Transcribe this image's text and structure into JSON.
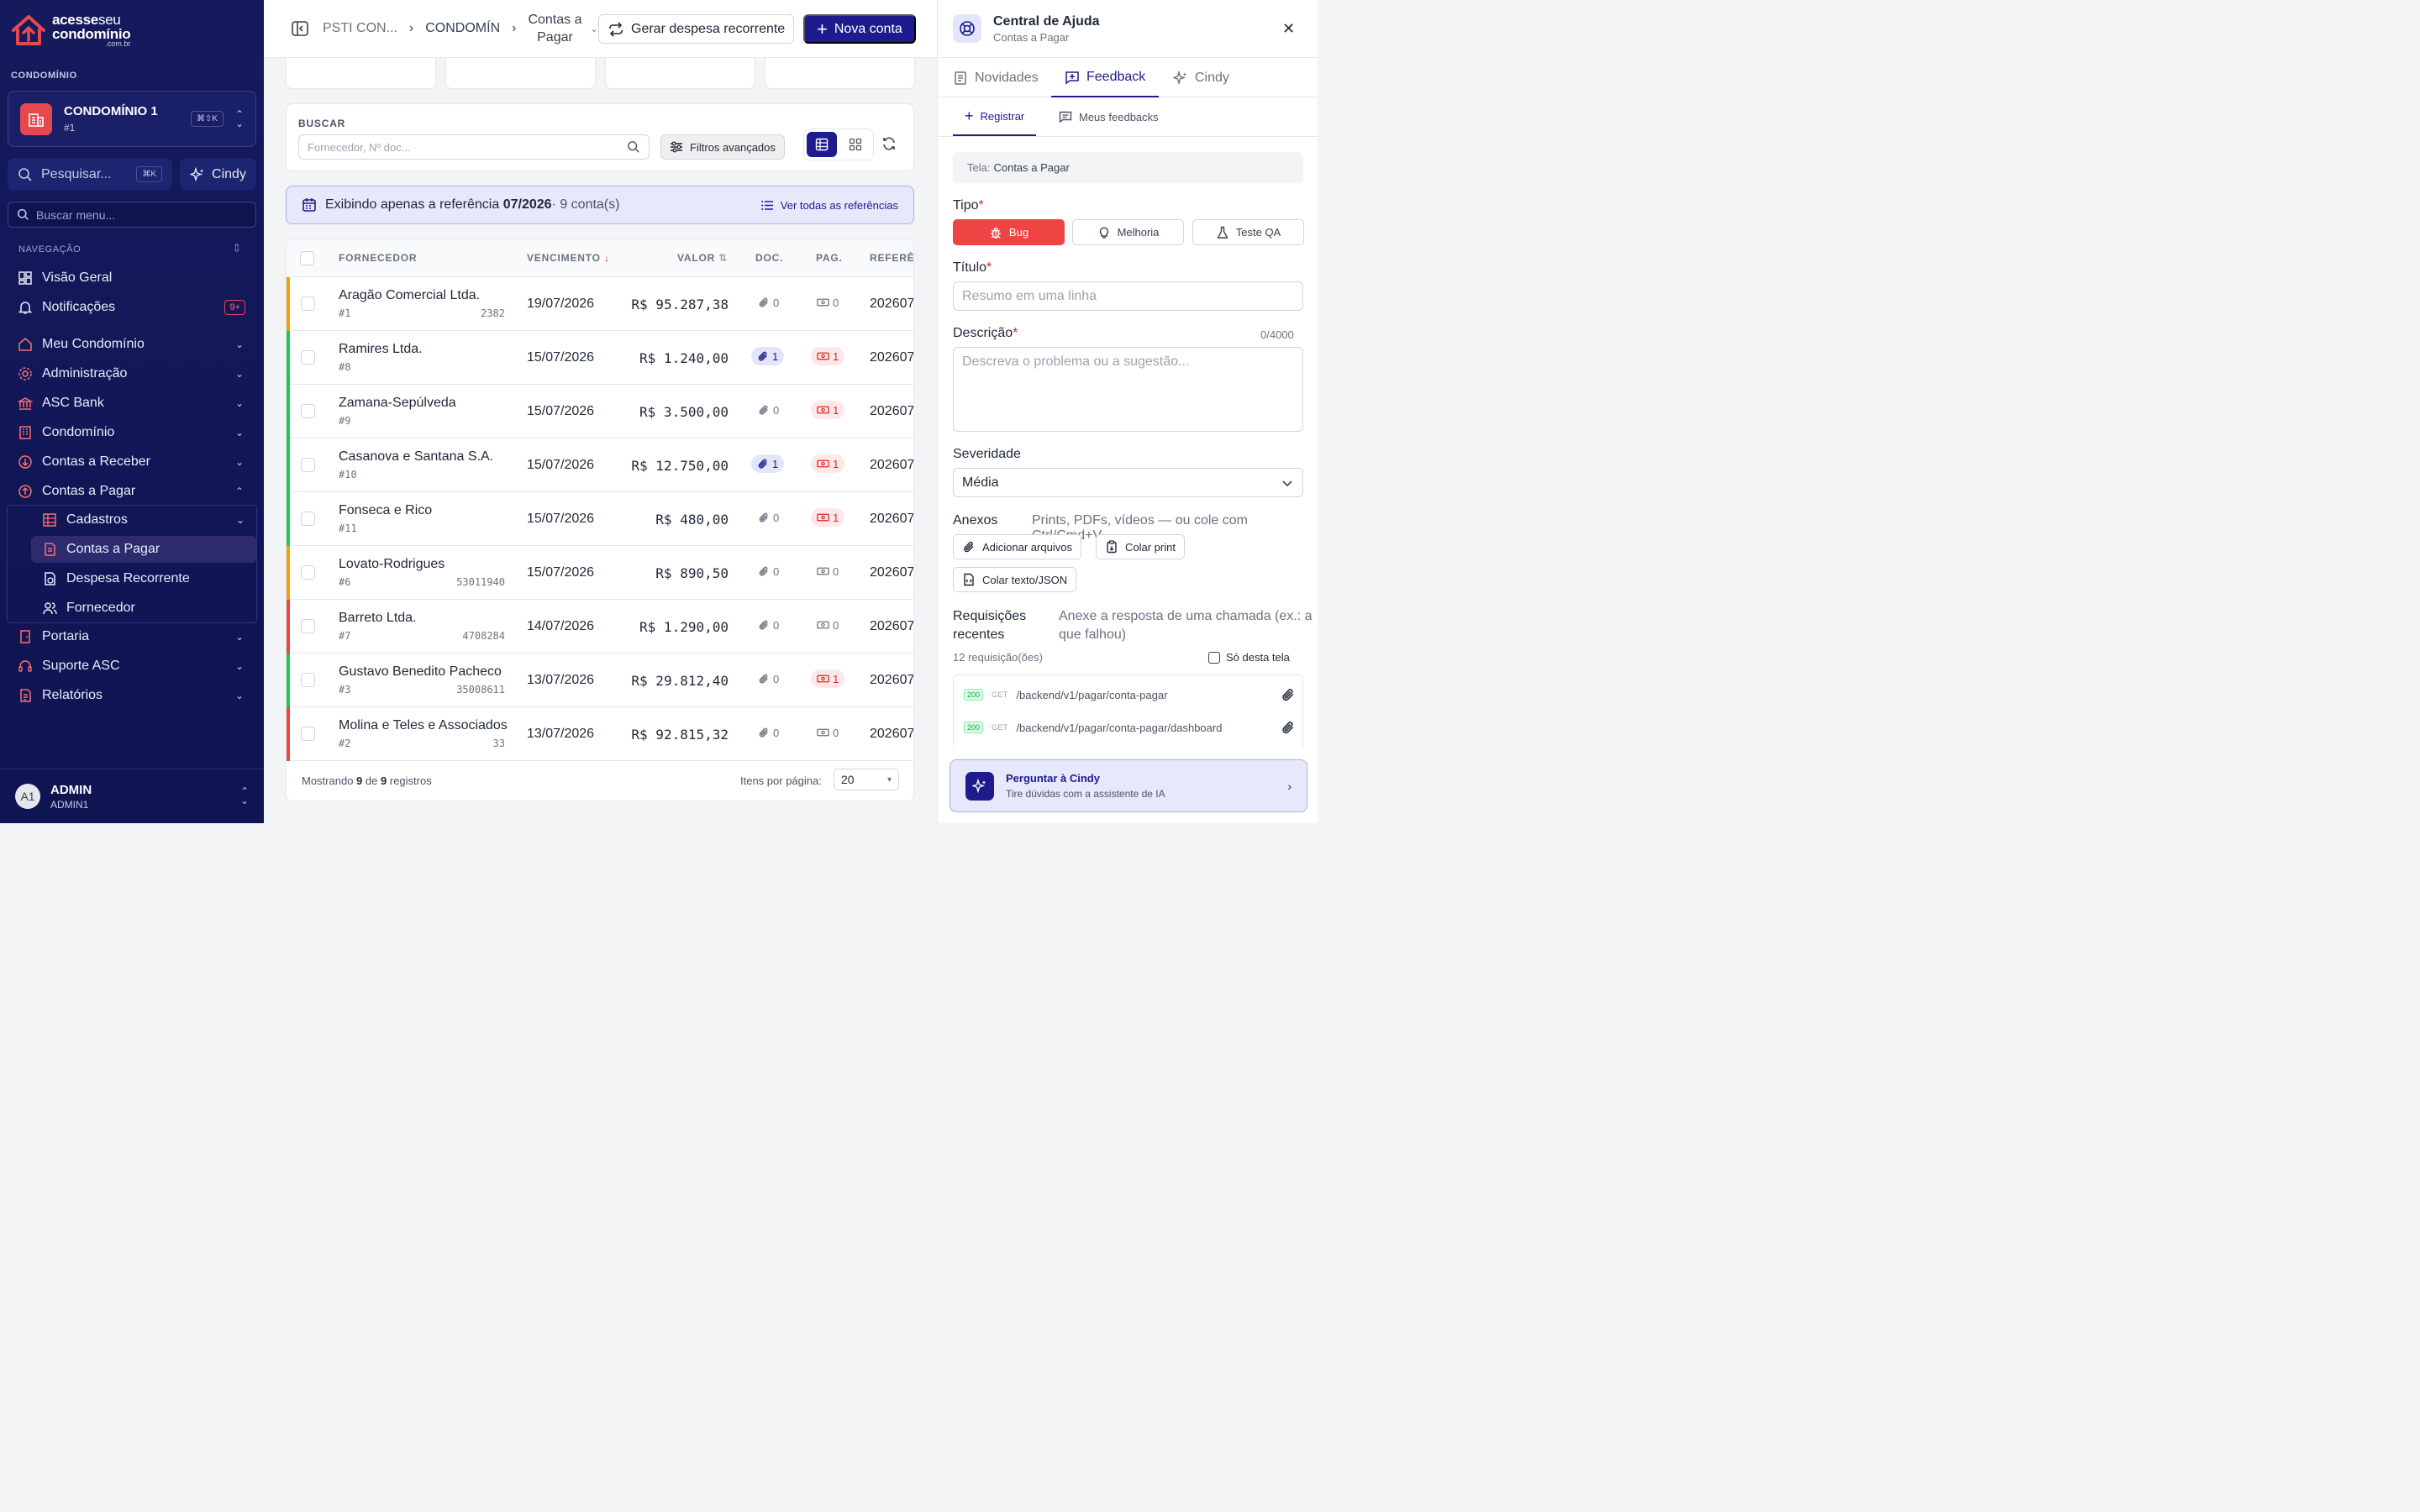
{
  "brand": {
    "line1a": "acesse",
    "line1b": "seu",
    "line2": "condomínio",
    "line3": ".com.br"
  },
  "sidebar": {
    "section_label": "CONDOMÍNIO",
    "condo": {
      "name": "CONDOMÍNIO 1",
      "id": "#1",
      "shortcut": "⌘⇧K"
    },
    "search": {
      "label": "Pesquisar...",
      "shortcut": "⌘K"
    },
    "cindy_label": "Cindy",
    "menu_search_placeholder": "Buscar menu...",
    "nav_label": "NAVEGAÇÃO",
    "items": [
      {
        "label": "Visão Geral"
      },
      {
        "label": "Notificações",
        "badge": "9+"
      },
      {
        "label": "Meu Condomínio"
      },
      {
        "label": "Administração"
      },
      {
        "label": "ASC Bank"
      },
      {
        "label": "Condomínio"
      },
      {
        "label": "Contas a Receber"
      },
      {
        "label": "Contas a Pagar"
      },
      {
        "label": "Portaria"
      },
      {
        "label": "Suporte ASC"
      },
      {
        "label": "Relatórios"
      }
    ],
    "sub_items": [
      {
        "label": "Cadastros"
      },
      {
        "label": "Contas a Pagar"
      },
      {
        "label": "Despesa Recorrente"
      },
      {
        "label": "Fornecedor"
      }
    ],
    "user": {
      "initials": "A1",
      "name": "ADMIN",
      "login": "ADMIN1"
    }
  },
  "header": {
    "breadcrumb": [
      "PSTI CON...",
      "CONDOMÍN",
      "Contas a Pagar"
    ],
    "breadcrumb_last_line1": "Contas a",
    "breadcrumb_last_line2": "Pagar",
    "recurring_button": "Gerar despesa recorrente",
    "new_button": "Nova conta"
  },
  "search": {
    "label": "BUSCAR",
    "placeholder": "Fornecedor, Nº doc...",
    "filters_button": "Filtros avançados"
  },
  "reference_banner": {
    "prefix": "Exibindo apenas a referência",
    "period": "07/2026",
    "count": "· 9 conta(s)",
    "link": "Ver todas as referências"
  },
  "table": {
    "columns": [
      "FORNECEDOR",
      "VENCIMENTO",
      "VALOR",
      "DOC.",
      "PAG.",
      "REFERÊNCIA"
    ],
    "rows": [
      {
        "supplier": "Aragão Comercial Ltda.",
        "sid": "#1",
        "doc": "2382",
        "due": "19/07/2026",
        "value": "R$ 95.287,38",
        "docs": "0",
        "pags": "0",
        "ref": "202607",
        "status": "#f59e0b"
      },
      {
        "supplier": "Ramires Ltda.",
        "sid": "#8",
        "doc": "",
        "due": "15/07/2026",
        "value": "R$ 1.240,00",
        "docs": "1",
        "pags": "1",
        "ref": "202607",
        "status": "#22c55e"
      },
      {
        "supplier": "Zamana-Sepúlveda",
        "sid": "#9",
        "doc": "",
        "due": "15/07/2026",
        "value": "R$ 3.500,00",
        "docs": "0",
        "pags": "1",
        "ref": "202607",
        "status": "#22c55e"
      },
      {
        "supplier": "Casanova e Santana S.A.",
        "sid": "#10",
        "doc": "",
        "due": "15/07/2026",
        "value": "R$ 12.750,00",
        "docs": "1",
        "pags": "1",
        "ref": "202607",
        "status": "#22c55e"
      },
      {
        "supplier": "Fonseca e Rico",
        "sid": "#11",
        "doc": "",
        "due": "15/07/2026",
        "value": "R$ 480,00",
        "docs": "0",
        "pags": "1",
        "ref": "202607",
        "status": "#22c55e"
      },
      {
        "supplier": "Lovato-Rodrigues",
        "sid": "#6",
        "doc": "53011940",
        "due": "15/07/2026",
        "value": "R$ 890,50",
        "docs": "0",
        "pags": "0",
        "ref": "202607",
        "status": "#f59e0b"
      },
      {
        "supplier": "Barreto Ltda.",
        "sid": "#7",
        "doc": "4708284",
        "due": "14/07/2026",
        "value": "R$ 1.290,00",
        "docs": "0",
        "pags": "0",
        "ref": "202607",
        "status": "#ef4444"
      },
      {
        "supplier": "Gustavo Benedito Pacheco",
        "sid": "#3",
        "doc": "35008611",
        "due": "13/07/2026",
        "value": "R$ 29.812,40",
        "docs": "0",
        "pags": "1",
        "ref": "202607",
        "status": "#22c55e"
      },
      {
        "supplier": "Molina e Teles e Associados",
        "sid": "#2",
        "doc": "33",
        "due": "13/07/2026",
        "value": "R$ 92.815,32",
        "docs": "0",
        "pags": "0",
        "ref": "202607",
        "status": "#ef4444"
      }
    ],
    "footer": {
      "showing": "Mostrando",
      "shown": "9",
      "of": "de",
      "total": "9",
      "records": "registros",
      "per_page_label": "Itens por página:",
      "per_page": "20"
    }
  },
  "panel": {
    "title": "Central de Ajuda",
    "subtitle": "Contas a Pagar",
    "tabs": [
      "Novidades",
      "Feedback",
      "Cindy"
    ],
    "subtabs": [
      "Registrar",
      "Meus feedbacks"
    ],
    "screen_label": "Tela:",
    "screen_value": "Contas a Pagar",
    "type_label": "Tipo",
    "types": [
      "Bug",
      "Melhoria",
      "Teste QA"
    ],
    "title_label": "Título",
    "title_placeholder": "Resumo em uma linha",
    "desc_label": "Descrição",
    "desc_counter": "0/4000",
    "desc_placeholder": "Descreva o problema ou a sugestão...",
    "severity_label": "Severidade",
    "severity_value": "Média",
    "attachments_label": "Anexos",
    "attachments_hint": "Prints, PDFs, vídeos — ou cole com Ctrl/Cmd+V",
    "attach_buttons": [
      "Adicionar arquivos",
      "Colar print",
      "Colar texto/JSON"
    ],
    "recent_label_1": "Requisições",
    "recent_label_2": "recentes",
    "recent_hint_1": "Anexe a resposta de uma chamada (ex.: a",
    "recent_hint_2": "que falhou)",
    "recent_count": "12 requisição(ões)",
    "only_screen": "Só desta tela",
    "requests": [
      {
        "status": "200",
        "method": "GET",
        "path": "/backend/v1/pagar/conta-pagar"
      },
      {
        "status": "200",
        "method": "GET",
        "path": "/backend/v1/pagar/conta-pagar/dashboard"
      }
    ],
    "ask": {
      "title": "Perguntar à Cindy",
      "subtitle": "Tire dúvidas com a assistente de IA"
    }
  }
}
